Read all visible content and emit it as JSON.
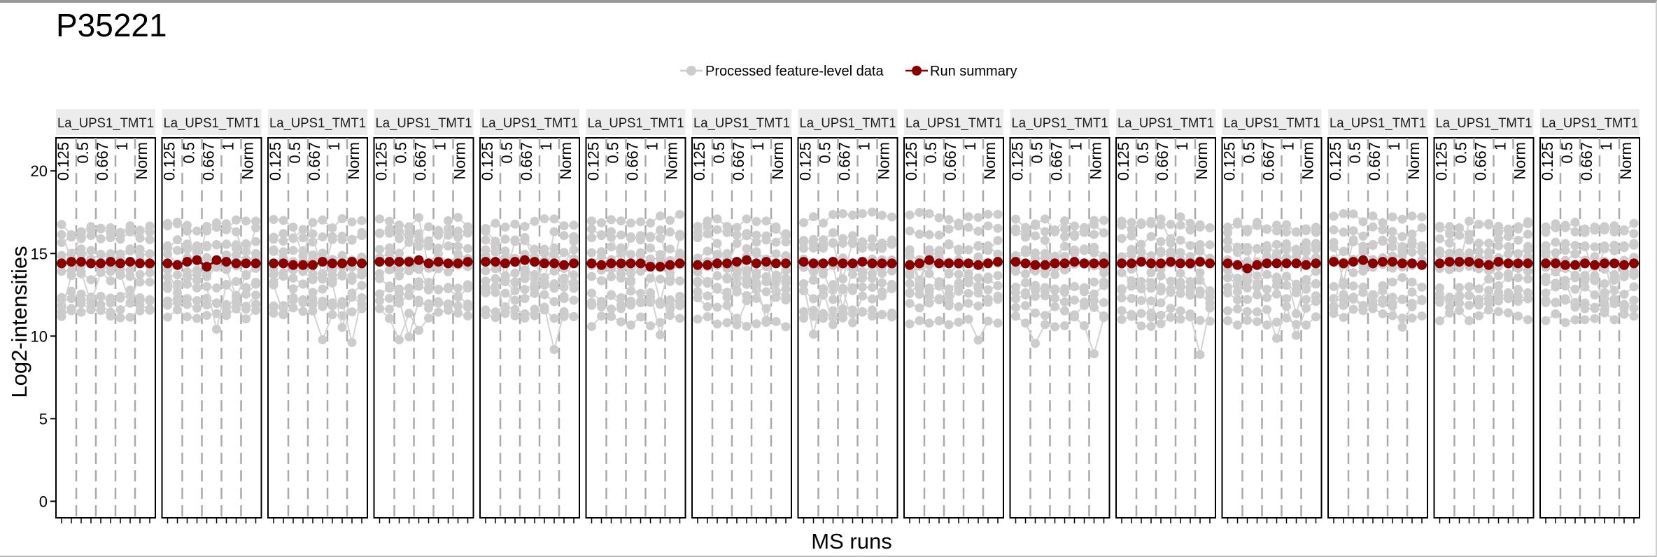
{
  "chart_data": {
    "type": "line",
    "title": "P35221",
    "xlabel": "MS runs",
    "ylabel": "Log2-intensities",
    "ylim": [
      -1,
      22
    ],
    "y_ticks": [
      0,
      5,
      10,
      15,
      20
    ],
    "legend": {
      "placement": "top",
      "entries": [
        {
          "label": "Processed feature-level data",
          "color": "#cccccc"
        },
        {
          "label": "Run summary",
          "color": "#8b0000"
        }
      ]
    },
    "grid": false,
    "panels": [
      {
        "label": "La_UPS1_TMT1",
        "summary": [
          14.4,
          14.5,
          14.5,
          14.4,
          14.4,
          14.5,
          14.4,
          14.5,
          14.4,
          14.4
        ]
      },
      {
        "label": "La_UPS1_TMT1",
        "summary": [
          14.4,
          14.3,
          14.5,
          14.6,
          14.2,
          14.6,
          14.5,
          14.4,
          14.4,
          14.4
        ]
      },
      {
        "label": "La_UPS1_TMT1",
        "summary": [
          14.4,
          14.4,
          14.3,
          14.3,
          14.3,
          14.5,
          14.4,
          14.4,
          14.5,
          14.4
        ]
      },
      {
        "label": "La_UPS1_TMT1",
        "summary": [
          14.5,
          14.5,
          14.5,
          14.5,
          14.6,
          14.4,
          14.5,
          14.4,
          14.4,
          14.5
        ]
      },
      {
        "label": "La_UPS1_TMT1",
        "summary": [
          14.5,
          14.5,
          14.4,
          14.5,
          14.6,
          14.5,
          14.4,
          14.4,
          14.3,
          14.4
        ]
      },
      {
        "label": "La_UPS1_TMT1",
        "summary": [
          14.4,
          14.3,
          14.4,
          14.4,
          14.4,
          14.4,
          14.2,
          14.2,
          14.3,
          14.4
        ]
      },
      {
        "label": "La_UPS1_TMT1",
        "summary": [
          14.3,
          14.3,
          14.4,
          14.4,
          14.5,
          14.6,
          14.4,
          14.5,
          14.4,
          14.4
        ]
      },
      {
        "label": "La_UPS1_TMT1",
        "summary": [
          14.5,
          14.4,
          14.4,
          14.5,
          14.4,
          14.4,
          14.5,
          14.4,
          14.4,
          14.4
        ]
      },
      {
        "label": "La_UPS1_TMT1",
        "summary": [
          14.3,
          14.4,
          14.6,
          14.4,
          14.4,
          14.4,
          14.4,
          14.3,
          14.4,
          14.5
        ]
      },
      {
        "label": "La_UPS1_TMT1",
        "summary": [
          14.5,
          14.4,
          14.3,
          14.3,
          14.4,
          14.4,
          14.5,
          14.4,
          14.4,
          14.4
        ]
      },
      {
        "label": "La_UPS1_TMT1",
        "summary": [
          14.4,
          14.4,
          14.5,
          14.4,
          14.4,
          14.5,
          14.4,
          14.4,
          14.5,
          14.4
        ]
      },
      {
        "label": "La_UPS1_TMT1",
        "summary": [
          14.4,
          14.3,
          14.1,
          14.3,
          14.4,
          14.4,
          14.4,
          14.4,
          14.3,
          14.4
        ]
      },
      {
        "label": "La_UPS1_TMT1",
        "summary": [
          14.5,
          14.4,
          14.5,
          14.6,
          14.4,
          14.5,
          14.5,
          14.4,
          14.4,
          14.3
        ]
      },
      {
        "label": "La_UPS1_TMT1",
        "summary": [
          14.4,
          14.5,
          14.5,
          14.5,
          14.4,
          14.3,
          14.5,
          14.4,
          14.4,
          14.4
        ]
      },
      {
        "label": "La_UPS1_TMT1",
        "summary": [
          14.4,
          14.4,
          14.3,
          14.3,
          14.4,
          14.3,
          14.4,
          14.4,
          14.3,
          14.4
        ]
      }
    ],
    "run_tick_labels": [
      "0.125",
      "0.5",
      "0.667",
      "1",
      "Norm"
    ],
    "features_per_panel": 12
  }
}
